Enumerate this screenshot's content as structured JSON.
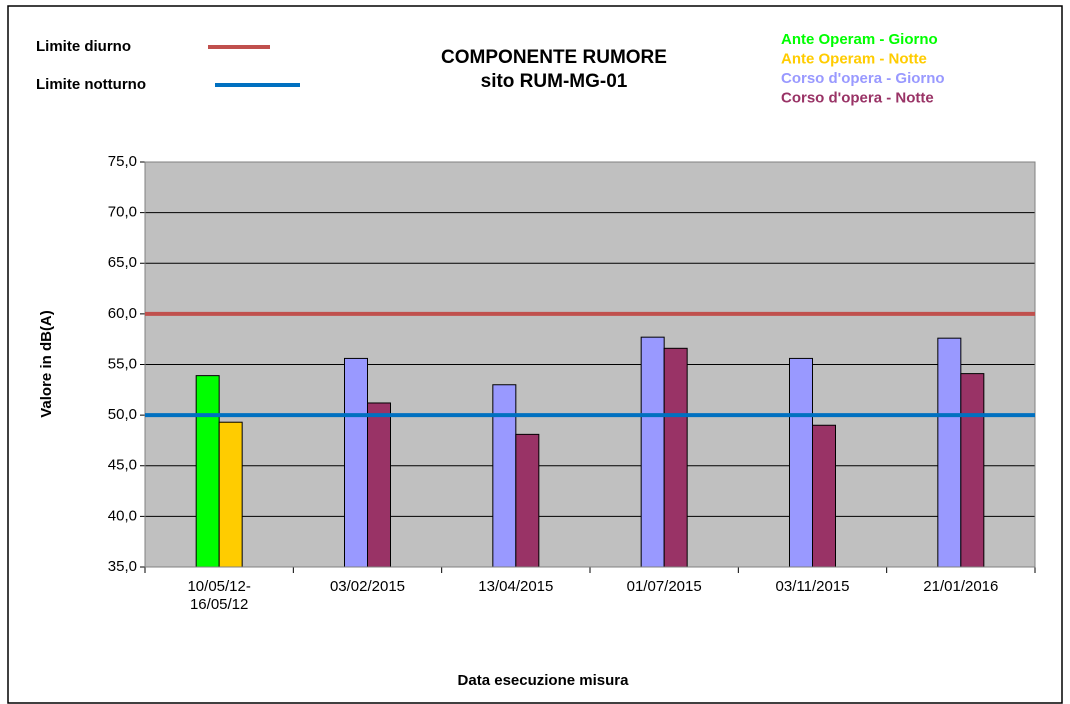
{
  "chart_data": {
    "type": "bar",
    "title": "COMPONENTE RUMORE",
    "subtitle": "sito RUM-MG-01",
    "categories": [
      "10/05/12-\n16/05/12",
      "03/02/2015",
      "13/04/2015",
      "01/07/2015",
      "03/11/2015",
      "21/01/2016"
    ],
    "series": [
      {
        "name": "Ante Operam - Giorno",
        "color": "#00ff00",
        "values": [
          53.9,
          null,
          null,
          null,
          null,
          null
        ]
      },
      {
        "name": "Ante Operam - Notte",
        "color": "#ffcc00",
        "values": [
          49.3,
          null,
          null,
          null,
          null,
          null
        ]
      },
      {
        "name": "Corso d'opera - Giorno",
        "color": "#9999ff",
        "values": [
          null,
          55.6,
          53.0,
          57.7,
          55.6,
          57.6
        ]
      },
      {
        "name": "Corso d'opera - Notte",
        "color": "#993366",
        "values": [
          null,
          51.2,
          48.1,
          56.6,
          49.0,
          54.1
        ]
      }
    ],
    "limits": [
      {
        "name": "Limite diurno",
        "value": 60,
        "color": "#c0504d"
      },
      {
        "name": "Limite notturno",
        "value": 50,
        "color": "#0070c0"
      }
    ],
    "ylabel": "Valore in dB(A)",
    "xlabel": "Data esecuzione misura",
    "ylim": [
      35,
      75
    ],
    "yticks": [
      {
        "value": 35,
        "label": "35,0"
      },
      {
        "value": 40,
        "label": "40,0"
      },
      {
        "value": 45,
        "label": "45,0"
      },
      {
        "value": 50,
        "label": "50,0"
      },
      {
        "value": 55,
        "label": "55,0"
      },
      {
        "value": 60,
        "label": "60,0"
      },
      {
        "value": 65,
        "label": "65,0"
      },
      {
        "value": 70,
        "label": "70,0"
      },
      {
        "value": 75,
        "label": "75,0"
      }
    ],
    "grid": true
  }
}
